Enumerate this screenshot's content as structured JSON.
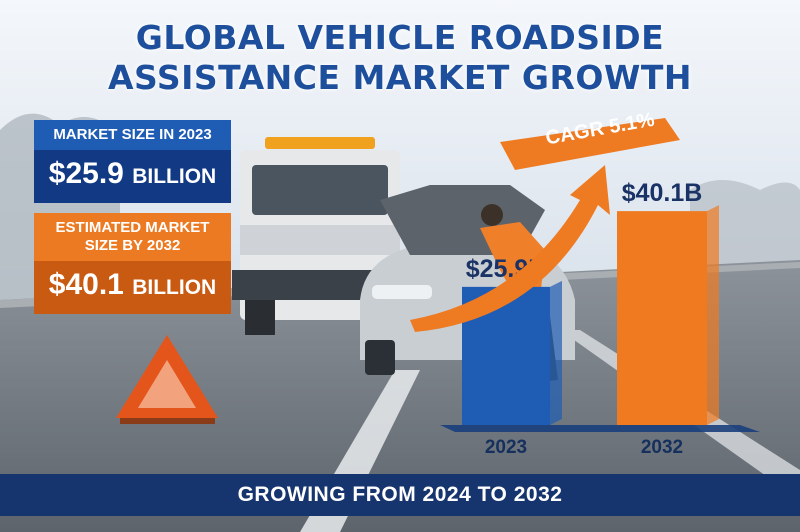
{
  "title": {
    "line1": "GLOBAL VEHICLE ROADSIDE",
    "line2": "ASSISTANCE MARKET GROWTH"
  },
  "stats": {
    "current_label": "MARKET SIZE IN 2023",
    "current_value": "$25.9",
    "current_unit": "BILLION",
    "forecast_label": "ESTIMATED MARKET SIZE BY 2032",
    "forecast_value": "$40.1",
    "forecast_unit": "BILLION"
  },
  "cagr": "CAGR 5.1%",
  "footer": "GROWING FROM 2024 TO 2032",
  "colors": {
    "title": "#1d4f9c",
    "blue_bar": "#1f5cb4",
    "orange_bar": "#ef7a1f",
    "footer": "#16356f"
  },
  "chart_data": {
    "type": "bar",
    "categories": [
      "2023",
      "2032"
    ],
    "values": [
      25.9,
      40.1
    ],
    "value_labels": [
      "$25.9B",
      "$40.1B"
    ],
    "bar_colors": [
      "#1f5cb4",
      "#ef7a1f"
    ],
    "ylabel": "",
    "ylim": [
      0,
      45
    ],
    "title": "GLOBAL VEHICLE ROADSIDE ASSISTANCE MARKET GROWTH"
  }
}
